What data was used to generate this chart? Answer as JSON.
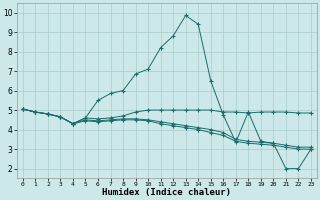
{
  "xlabel": "Humidex (Indice chaleur)",
  "xlim": [
    -0.5,
    23.5
  ],
  "ylim": [
    1.5,
    10.5
  ],
  "xticks": [
    0,
    1,
    2,
    3,
    4,
    5,
    6,
    7,
    8,
    9,
    10,
    11,
    12,
    13,
    14,
    15,
    16,
    17,
    18,
    19,
    20,
    21,
    22,
    23
  ],
  "yticks": [
    2,
    3,
    4,
    5,
    6,
    7,
    8,
    9,
    10
  ],
  "bg_color": "#cce8e8",
  "line_color": "#1a6b6b",
  "grid_color": "#aacccc",
  "line1_x": [
    0,
    1,
    2,
    3,
    4,
    5,
    6,
    7,
    8,
    9,
    10,
    11,
    12,
    13,
    14,
    15,
    16,
    17,
    18,
    19,
    20,
    21,
    22,
    23
  ],
  "line1_y": [
    5.05,
    4.9,
    4.8,
    4.65,
    4.3,
    4.6,
    5.5,
    5.85,
    6.0,
    6.85,
    7.1,
    8.2,
    8.8,
    9.85,
    9.4,
    6.5,
    4.75,
    3.35,
    4.9,
    3.4,
    3.3,
    2.0,
    2.0,
    3.0
  ],
  "line2_x": [
    0,
    1,
    2,
    3,
    4,
    5,
    6,
    7,
    8,
    9,
    10,
    11,
    12,
    13,
    14,
    15,
    16,
    17,
    18,
    19,
    20,
    21,
    22,
    23
  ],
  "line2_y": [
    5.05,
    4.9,
    4.8,
    4.65,
    4.3,
    4.6,
    4.55,
    4.6,
    4.7,
    4.9,
    5.0,
    5.0,
    5.0,
    5.0,
    5.0,
    5.0,
    4.9,
    4.9,
    4.85,
    4.9,
    4.9,
    4.9,
    4.85,
    4.85
  ],
  "line3_x": [
    0,
    1,
    2,
    3,
    4,
    5,
    6,
    7,
    8,
    9,
    10,
    11,
    12,
    13,
    14,
    15,
    16,
    17,
    18,
    19,
    20,
    21,
    22,
    23
  ],
  "line3_y": [
    5.05,
    4.9,
    4.8,
    4.65,
    4.3,
    4.5,
    4.45,
    4.5,
    4.55,
    4.55,
    4.5,
    4.4,
    4.3,
    4.2,
    4.1,
    4.0,
    3.85,
    3.5,
    3.4,
    3.35,
    3.3,
    3.2,
    3.1,
    3.1
  ],
  "line4_x": [
    0,
    1,
    2,
    3,
    4,
    5,
    6,
    7,
    8,
    9,
    10,
    11,
    12,
    13,
    14,
    15,
    16,
    17,
    18,
    19,
    20,
    21,
    22,
    23
  ],
  "line4_y": [
    5.05,
    4.9,
    4.8,
    4.65,
    4.3,
    4.45,
    4.4,
    4.45,
    4.5,
    4.5,
    4.45,
    4.3,
    4.2,
    4.1,
    4.0,
    3.85,
    3.7,
    3.4,
    3.3,
    3.25,
    3.2,
    3.1,
    3.0,
    3.0
  ]
}
